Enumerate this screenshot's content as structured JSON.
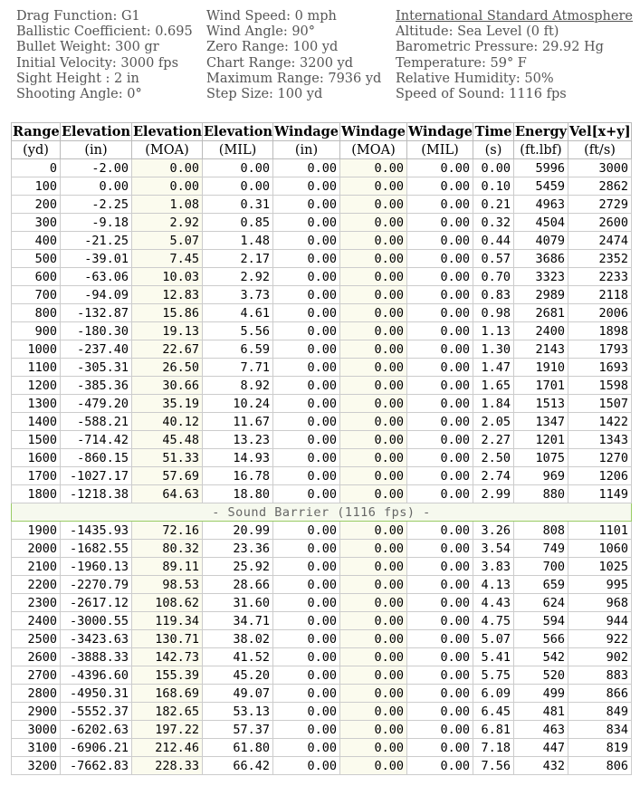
{
  "header": {
    "columns": [
      [
        "Drag Function: G1",
        "Ballistic Coefficient: 0.695",
        "Bullet Weight: 300 gr",
        "Initial Velocity: 3000 fps",
        "Sight Height : 2 in",
        "Shooting Angle: 0°"
      ],
      [
        "Wind Speed: 0 mph",
        "Wind Angle: 90°",
        "Zero Range: 100 yd",
        "Chart Range: 3200 yd",
        "Maximum Range: 7936 yd",
        "Step Size: 100 yd"
      ],
      [
        "International Standard Atmosphere",
        "Altitude: Sea Level (0 ft)",
        "Barometric Pressure: 29.92 Hg",
        "Temperature: 59° F",
        "Relative Humidity: 50%",
        "Speed of Sound: 1116 fps"
      ]
    ]
  },
  "table": {
    "headers": [
      "Range",
      "Elevation",
      "Elevation",
      "Elevation",
      "Windage",
      "Windage",
      "Windage",
      "Time",
      "Energy",
      "Vel[x+y]"
    ],
    "units": [
      "(yd)",
      "(in)",
      "(MOA)",
      "(MIL)",
      "(in)",
      "(MOA)",
      "(MIL)",
      "(s)",
      "(ft.lbf)",
      "(ft/s)"
    ],
    "supersonic_rows": [
      [
        "0",
        "-2.00",
        "0.00",
        "0.00",
        "0.00",
        "0.00",
        "0.00",
        "0.00",
        "5996",
        "3000"
      ],
      [
        "100",
        "0.00",
        "0.00",
        "0.00",
        "0.00",
        "0.00",
        "0.00",
        "0.10",
        "5459",
        "2862"
      ],
      [
        "200",
        "-2.25",
        "1.08",
        "0.31",
        "0.00",
        "0.00",
        "0.00",
        "0.21",
        "4963",
        "2729"
      ],
      [
        "300",
        "-9.18",
        "2.92",
        "0.85",
        "0.00",
        "0.00",
        "0.00",
        "0.32",
        "4504",
        "2600"
      ],
      [
        "400",
        "-21.25",
        "5.07",
        "1.48",
        "0.00",
        "0.00",
        "0.00",
        "0.44",
        "4079",
        "2474"
      ],
      [
        "500",
        "-39.01",
        "7.45",
        "2.17",
        "0.00",
        "0.00",
        "0.00",
        "0.57",
        "3686",
        "2352"
      ],
      [
        "600",
        "-63.06",
        "10.03",
        "2.92",
        "0.00",
        "0.00",
        "0.00",
        "0.70",
        "3323",
        "2233"
      ],
      [
        "700",
        "-94.09",
        "12.83",
        "3.73",
        "0.00",
        "0.00",
        "0.00",
        "0.83",
        "2989",
        "2118"
      ],
      [
        "800",
        "-132.87",
        "15.86",
        "4.61",
        "0.00",
        "0.00",
        "0.00",
        "0.98",
        "2681",
        "2006"
      ],
      [
        "900",
        "-180.30",
        "19.13",
        "5.56",
        "0.00",
        "0.00",
        "0.00",
        "1.13",
        "2400",
        "1898"
      ],
      [
        "1000",
        "-237.40",
        "22.67",
        "6.59",
        "0.00",
        "0.00",
        "0.00",
        "1.30",
        "2143",
        "1793"
      ],
      [
        "1100",
        "-305.31",
        "26.50",
        "7.71",
        "0.00",
        "0.00",
        "0.00",
        "1.47",
        "1910",
        "1693"
      ],
      [
        "1200",
        "-385.36",
        "30.66",
        "8.92",
        "0.00",
        "0.00",
        "0.00",
        "1.65",
        "1701",
        "1598"
      ],
      [
        "1300",
        "-479.20",
        "35.19",
        "10.24",
        "0.00",
        "0.00",
        "0.00",
        "1.84",
        "1513",
        "1507"
      ],
      [
        "1400",
        "-588.21",
        "40.12",
        "11.67",
        "0.00",
        "0.00",
        "0.00",
        "2.05",
        "1347",
        "1422"
      ],
      [
        "1500",
        "-714.42",
        "45.48",
        "13.23",
        "0.00",
        "0.00",
        "0.00",
        "2.27",
        "1201",
        "1343"
      ],
      [
        "1600",
        "-860.15",
        "51.33",
        "14.93",
        "0.00",
        "0.00",
        "0.00",
        "2.50",
        "1075",
        "1270"
      ],
      [
        "1700",
        "-1027.17",
        "57.69",
        "16.78",
        "0.00",
        "0.00",
        "0.00",
        "2.74",
        "969",
        "1206"
      ],
      [
        "1800",
        "-1218.38",
        "64.63",
        "18.80",
        "0.00",
        "0.00",
        "0.00",
        "2.99",
        "880",
        "1149"
      ]
    ],
    "sound_barrier": "- Sound Barrier (1116 fps) -",
    "subsonic_rows": [
      [
        "1900",
        "-1435.93",
        "72.16",
        "20.99",
        "0.00",
        "0.00",
        "0.00",
        "3.26",
        "808",
        "1101"
      ],
      [
        "2000",
        "-1682.55",
        "80.32",
        "23.36",
        "0.00",
        "0.00",
        "0.00",
        "3.54",
        "749",
        "1060"
      ],
      [
        "2100",
        "-1960.13",
        "89.11",
        "25.92",
        "0.00",
        "0.00",
        "0.00",
        "3.83",
        "700",
        "1025"
      ],
      [
        "2200",
        "-2270.79",
        "98.53",
        "28.66",
        "0.00",
        "0.00",
        "0.00",
        "4.13",
        "659",
        "995"
      ],
      [
        "2300",
        "-2617.12",
        "108.62",
        "31.60",
        "0.00",
        "0.00",
        "0.00",
        "4.43",
        "624",
        "968"
      ],
      [
        "2400",
        "-3000.55",
        "119.34",
        "34.71",
        "0.00",
        "0.00",
        "0.00",
        "4.75",
        "594",
        "944"
      ],
      [
        "2500",
        "-3423.63",
        "130.71",
        "38.02",
        "0.00",
        "0.00",
        "0.00",
        "5.07",
        "566",
        "922"
      ],
      [
        "2600",
        "-3888.33",
        "142.73",
        "41.52",
        "0.00",
        "0.00",
        "0.00",
        "5.41",
        "542",
        "902"
      ],
      [
        "2700",
        "-4396.60",
        "155.39",
        "45.20",
        "0.00",
        "0.00",
        "0.00",
        "5.75",
        "520",
        "883"
      ],
      [
        "2800",
        "-4950.31",
        "168.69",
        "49.07",
        "0.00",
        "0.00",
        "0.00",
        "6.09",
        "499",
        "866"
      ],
      [
        "2900",
        "-5552.37",
        "182.65",
        "53.13",
        "0.00",
        "0.00",
        "0.00",
        "6.45",
        "481",
        "849"
      ],
      [
        "3000",
        "-6202.63",
        "197.22",
        "57.37",
        "0.00",
        "0.00",
        "0.00",
        "6.81",
        "463",
        "834"
      ],
      [
        "3100",
        "-6906.21",
        "212.46",
        "61.80",
        "0.00",
        "0.00",
        "0.00",
        "7.18",
        "447",
        "819"
      ],
      [
        "3200",
        "-7662.83",
        "228.33",
        "66.42",
        "0.00",
        "0.00",
        "0.00",
        "7.56",
        "432",
        "806"
      ]
    ]
  }
}
